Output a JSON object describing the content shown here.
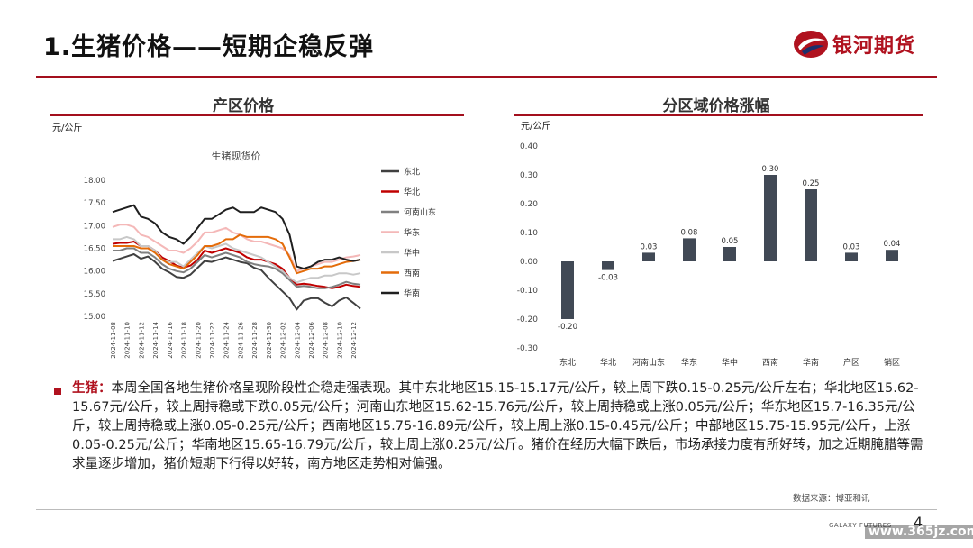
{
  "header": {
    "title": "1.生猪价格——短期企稳反弹",
    "logo_text": "银河期货"
  },
  "left": {
    "section_title": "产区价格",
    "unit": "元/公斤",
    "chart_data": {
      "type": "line",
      "title": "生猪现货价",
      "ylim": [
        15.0,
        18.0
      ],
      "y_ticks": [
        "18.00",
        "17.50",
        "17.00",
        "16.50",
        "16.00",
        "15.50",
        "15.00"
      ],
      "x": [
        "2024-11-08",
        "2024-11-09",
        "2024-11-10",
        "2024-11-11",
        "2024-11-12",
        "2024-11-13",
        "2024-11-14",
        "2024-11-15",
        "2024-11-16",
        "2024-11-17",
        "2024-11-18",
        "2024-11-19",
        "2024-11-20",
        "2024-11-21",
        "2024-11-22",
        "2024-11-23",
        "2024-11-24",
        "2024-11-25",
        "2024-11-26",
        "2024-11-27",
        "2024-11-28",
        "2024-11-29",
        "2024-11-30",
        "2024-12-01",
        "2024-12-02",
        "2024-12-03",
        "2024-12-04",
        "2024-12-05",
        "2024-12-06",
        "2024-12-07",
        "2024-12-08",
        "2024-12-09",
        "2024-12-10",
        "2024-12-11",
        "2024-12-12",
        "2024-12-13"
      ],
      "x_tick_labels": [
        "2024-11-08",
        "2024-11-10",
        "2024-11-12",
        "2024-11-14",
        "2024-11-16",
        "2024-11-18",
        "2024-11-20",
        "2024-11-22",
        "2024-11-24",
        "2024-11-26",
        "2024-11-28",
        "2024-11-30",
        "2024-12-02",
        "2024-12-04",
        "2024-12-06",
        "2024-12-08",
        "2024-12-10",
        "2024-12-12"
      ],
      "series": [
        {
          "name": "东北",
          "color": "#404040",
          "values": [
            16.22,
            16.27,
            16.32,
            16.37,
            16.27,
            16.32,
            16.2,
            16.05,
            15.97,
            15.87,
            15.85,
            15.92,
            16.07,
            16.22,
            16.2,
            16.25,
            16.3,
            16.25,
            16.2,
            16.17,
            16.07,
            16.02,
            15.85,
            15.7,
            15.55,
            15.4,
            15.15,
            15.35,
            15.4,
            15.4,
            15.3,
            15.22,
            15.35,
            15.42,
            15.3,
            15.17
          ]
        },
        {
          "name": "华北",
          "color": "#c00000",
          "values": [
            16.6,
            16.62,
            16.62,
            16.65,
            16.55,
            16.55,
            16.45,
            16.3,
            16.22,
            16.12,
            16.07,
            16.12,
            16.25,
            16.45,
            16.4,
            16.45,
            16.5,
            16.45,
            16.4,
            16.3,
            16.25,
            16.25,
            16.2,
            16.15,
            16.05,
            15.85,
            15.7,
            15.72,
            15.7,
            15.67,
            15.65,
            15.62,
            15.65,
            15.7,
            15.67,
            15.65
          ]
        },
        {
          "name": "河南山东",
          "color": "#808080",
          "values": [
            16.45,
            16.45,
            16.5,
            16.5,
            16.4,
            16.4,
            16.3,
            16.15,
            16.05,
            16.0,
            15.97,
            16.05,
            16.2,
            16.35,
            16.3,
            16.35,
            16.4,
            16.35,
            16.3,
            16.2,
            16.15,
            16.12,
            16.1,
            16.05,
            15.95,
            15.8,
            15.65,
            15.67,
            15.65,
            15.62,
            15.62,
            15.65,
            15.7,
            15.76,
            15.72,
            15.7
          ]
        },
        {
          "name": "华东",
          "color": "#f4b8b8",
          "values": [
            16.97,
            17.02,
            17.02,
            16.97,
            16.8,
            16.75,
            16.65,
            16.55,
            16.45,
            16.45,
            16.4,
            16.5,
            16.65,
            16.85,
            16.85,
            16.9,
            16.95,
            16.85,
            16.8,
            16.7,
            16.65,
            16.65,
            16.6,
            16.55,
            16.5,
            16.35,
            16.0,
            16.05,
            16.1,
            16.15,
            16.2,
            16.2,
            16.25,
            16.3,
            16.32,
            16.35
          ]
        },
        {
          "name": "华中",
          "color": "#c8c8c8",
          "values": [
            16.7,
            16.7,
            16.75,
            16.7,
            16.55,
            16.55,
            16.45,
            16.25,
            16.2,
            16.2,
            16.1,
            16.25,
            16.4,
            16.55,
            16.5,
            16.55,
            16.6,
            16.5,
            16.45,
            16.4,
            16.35,
            16.3,
            16.2,
            16.1,
            16.0,
            15.85,
            15.75,
            15.8,
            15.85,
            15.85,
            15.9,
            15.9,
            15.95,
            15.95,
            15.92,
            15.95
          ]
        },
        {
          "name": "西南",
          "color": "#e46c0a",
          "values": [
            16.55,
            16.55,
            16.55,
            16.55,
            16.5,
            16.5,
            16.4,
            16.25,
            16.15,
            16.1,
            16.05,
            16.2,
            16.35,
            16.55,
            16.55,
            16.6,
            16.7,
            16.7,
            16.8,
            16.75,
            16.75,
            16.75,
            16.75,
            16.7,
            16.6,
            16.3,
            15.95,
            16.0,
            16.05,
            16.05,
            16.1,
            16.1,
            16.15,
            16.2,
            16.22,
            16.25
          ]
        },
        {
          "name": "华南",
          "color": "#1f1f1f",
          "values": [
            17.3,
            17.35,
            17.4,
            17.45,
            17.2,
            17.15,
            17.05,
            16.85,
            16.75,
            16.7,
            16.6,
            16.75,
            16.95,
            17.15,
            17.15,
            17.25,
            17.35,
            17.4,
            17.3,
            17.3,
            17.3,
            17.4,
            17.35,
            17.3,
            17.15,
            16.8,
            16.1,
            16.05,
            16.1,
            16.2,
            16.25,
            16.25,
            16.3,
            16.25,
            16.22,
            16.25
          ]
        }
      ]
    }
  },
  "right": {
    "section_title": "分区域价格涨幅",
    "unit": "元/公斤",
    "chart_data": {
      "type": "bar",
      "categories": [
        "东北",
        "华北",
        "河南山东",
        "华东",
        "华中",
        "西南",
        "华南",
        "产区",
        "销区"
      ],
      "values": [
        -0.2,
        -0.03,
        0.03,
        0.08,
        0.05,
        0.3,
        0.25,
        0.03,
        0.04
      ],
      "value_labels": [
        "-0.20",
        "-0.03",
        "0.03",
        "0.08",
        "0.05",
        "0.30",
        "0.25",
        "0.03",
        "0.04"
      ],
      "ylim": [
        -0.3,
        0.4
      ],
      "y_ticks": [
        "0.40",
        "0.30",
        "0.20",
        "0.10",
        "0.00",
        "-0.10",
        "-0.20",
        "-0.30"
      ],
      "bar_color": "#414955"
    }
  },
  "commentary": {
    "label": "生猪：",
    "text": "本周全国各地生猪价格呈现阶段性企稳走强表现。其中东北地区15.15-15.17元/公斤，较上周下跌0.15-0.25元/公斤左右；华北地区15.62-15.67元/公斤，较上周持稳或下跌0.05元/公斤；河南山东地区15.62-15.76元/公斤，较上周持稳或上涨0.05元/公斤；华东地区15.7-16.35元/公斤，较上周持稳或上涨0.05-0.25元/公斤；西南地区15.75-16.89元/公斤，较上周上涨0.15-0.45元/公斤；中部地区15.75-15.95元/公斤，上涨0.05-0.25元/公斤；华南地区15.65-16.79元/公斤，较上周上涨0.25元/公斤。猪价在经历大幅下跌后，市场承接力度有所好转，加之近期腌腊等需求量逐步增加，猪价短期下行得以好转，南方地区走势相对偏强。"
  },
  "source": "数据来源：博亚和讯",
  "footer": {
    "brand_en": "GALAXY FUTURES",
    "page": "4",
    "watermark": "www.365jz.com"
  }
}
